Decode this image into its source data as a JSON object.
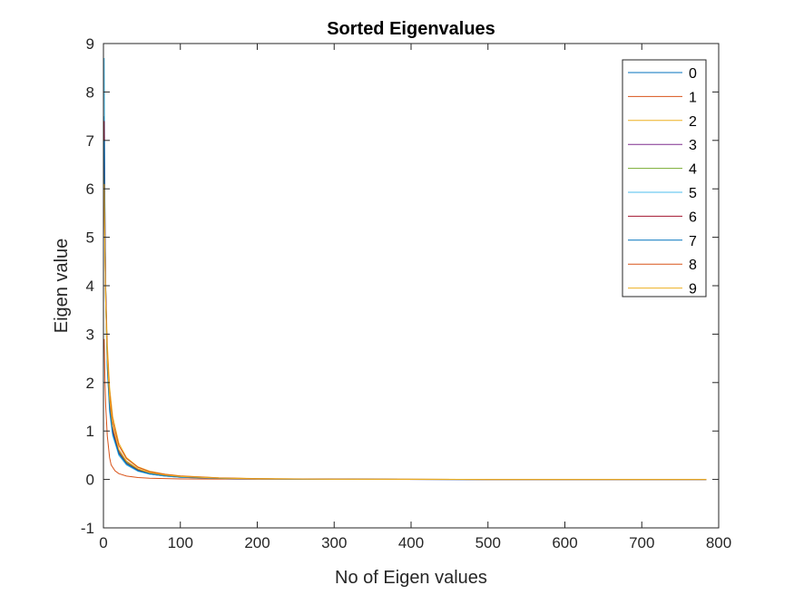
{
  "chart_data": {
    "type": "line",
    "title": "Sorted Eigenvalues",
    "xlabel": "No of Eigen values",
    "ylabel": "Eigen value",
    "xlim": [
      0,
      800
    ],
    "ylim": [
      -1,
      9
    ],
    "x_ticks": [
      0,
      100,
      200,
      300,
      400,
      500,
      600,
      700,
      800
    ],
    "y_ticks": [
      -1,
      0,
      1,
      2,
      3,
      4,
      5,
      6,
      7,
      8,
      9
    ],
    "grid": false,
    "legend_position": "top-right",
    "series": [
      {
        "name": "0",
        "color": "#0072BD",
        "x": [
          1,
          2,
          3,
          5,
          8,
          12,
          20,
          30,
          45,
          60,
          80,
          100,
          150,
          200,
          300,
          500,
          784
        ],
        "values": [
          7.5,
          5.2,
          3.9,
          2.5,
          1.5,
          0.95,
          0.5,
          0.3,
          0.17,
          0.11,
          0.07,
          0.045,
          0.02,
          0.01,
          0.004,
          0.0,
          0.0
        ]
      },
      {
        "name": "1",
        "color": "#D95319",
        "x": [
          1,
          2,
          3,
          5,
          8,
          10,
          15,
          20,
          30,
          45,
          60,
          100,
          200,
          500,
          784
        ],
        "values": [
          2.9,
          2.0,
          1.5,
          0.9,
          0.45,
          0.3,
          0.18,
          0.12,
          0.07,
          0.04,
          0.025,
          0.012,
          0.004,
          0.0,
          0.0
        ]
      },
      {
        "name": "2",
        "color": "#EDB120",
        "x": [
          1,
          2,
          3,
          5,
          8,
          12,
          20,
          30,
          45,
          60,
          80,
          100,
          150,
          200,
          300,
          500,
          784
        ],
        "values": [
          6.3,
          4.8,
          3.9,
          2.8,
          1.9,
          1.3,
          0.75,
          0.45,
          0.26,
          0.17,
          0.11,
          0.075,
          0.035,
          0.018,
          0.006,
          0.0,
          0.0
        ]
      },
      {
        "name": "3",
        "color": "#7E2F8E",
        "x": [
          1,
          2,
          3,
          5,
          8,
          12,
          20,
          30,
          45,
          60,
          80,
          100,
          150,
          200,
          300,
          500,
          784
        ],
        "values": [
          7.0,
          5.1,
          3.8,
          2.5,
          1.6,
          1.05,
          0.6,
          0.37,
          0.21,
          0.14,
          0.09,
          0.06,
          0.027,
          0.014,
          0.005,
          0.0,
          0.0
        ]
      },
      {
        "name": "4",
        "color": "#77AC30",
        "x": [
          1,
          2,
          3,
          5,
          8,
          12,
          20,
          30,
          45,
          60,
          80,
          100,
          150,
          200,
          300,
          500,
          784
        ],
        "values": [
          6.3,
          4.7,
          3.6,
          2.4,
          1.55,
          1.0,
          0.57,
          0.35,
          0.2,
          0.13,
          0.085,
          0.055,
          0.025,
          0.013,
          0.005,
          0.0,
          0.0
        ]
      },
      {
        "name": "5",
        "color": "#4DBEEE",
        "x": [
          1,
          2,
          3,
          5,
          8,
          12,
          20,
          30,
          45,
          60,
          80,
          100,
          150,
          200,
          300,
          500,
          784
        ],
        "values": [
          8.7,
          5.6,
          3.9,
          2.3,
          1.4,
          0.9,
          0.5,
          0.3,
          0.17,
          0.11,
          0.07,
          0.045,
          0.02,
          0.01,
          0.004,
          0.0,
          0.0
        ]
      },
      {
        "name": "6",
        "color": "#A2142F",
        "x": [
          1,
          2,
          3,
          5,
          8,
          12,
          20,
          30,
          45,
          60,
          80,
          100,
          150,
          200,
          300,
          500,
          784
        ],
        "values": [
          7.4,
          5.3,
          3.9,
          2.5,
          1.55,
          1.0,
          0.55,
          0.33,
          0.19,
          0.12,
          0.08,
          0.05,
          0.022,
          0.011,
          0.004,
          0.0,
          0.0
        ]
      },
      {
        "name": "7",
        "color": "#0072BD",
        "x": [
          1,
          2,
          3,
          5,
          8,
          12,
          20,
          30,
          45,
          60,
          80,
          100,
          150,
          200,
          300,
          500,
          784
        ],
        "values": [
          7.0,
          4.9,
          3.6,
          2.3,
          1.45,
          0.95,
          0.53,
          0.32,
          0.18,
          0.12,
          0.075,
          0.05,
          0.022,
          0.011,
          0.004,
          0.0,
          0.0
        ]
      },
      {
        "name": "8",
        "color": "#D95319",
        "x": [
          1,
          2,
          3,
          5,
          8,
          12,
          20,
          30,
          45,
          60,
          80,
          100,
          150,
          200,
          300,
          500,
          784
        ],
        "values": [
          5.9,
          4.6,
          3.7,
          2.6,
          1.75,
          1.2,
          0.7,
          0.43,
          0.25,
          0.16,
          0.105,
          0.07,
          0.032,
          0.016,
          0.006,
          0.0,
          0.0
        ]
      },
      {
        "name": "9",
        "color": "#EDB120",
        "x": [
          1,
          2,
          3,
          5,
          8,
          12,
          20,
          30,
          45,
          60,
          80,
          100,
          150,
          200,
          300,
          500,
          784
        ],
        "values": [
          6.1,
          4.6,
          3.6,
          2.5,
          1.65,
          1.1,
          0.62,
          0.38,
          0.22,
          0.14,
          0.09,
          0.06,
          0.027,
          0.014,
          0.005,
          0.0,
          0.0
        ]
      }
    ]
  }
}
